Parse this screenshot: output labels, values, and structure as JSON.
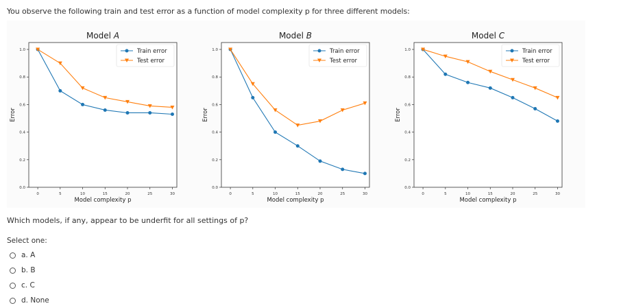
{
  "intro_text": "You observe the following train and test error as a function of model complexity p for three different models:",
  "question_text": "Which models, if any, appear to be underfit for all settings of p?",
  "select_label": "Select one:",
  "options": [
    {
      "label": "a. A"
    },
    {
      "label": "b. B"
    },
    {
      "label": "c. C"
    },
    {
      "label": "d. None"
    }
  ],
  "colors": {
    "train": "#1f77b4",
    "test": "#ff7f0e"
  },
  "chart_data": [
    {
      "type": "line",
      "title_prefix": "Model ",
      "title_var": "A",
      "xlabel": "Model complexity p",
      "ylabel": "Error",
      "xticks": [
        "0",
        "5",
        "10",
        "15",
        "20",
        "25",
        "30"
      ],
      "yticks": [
        "0.0",
        "0.2",
        "0.4",
        "0.6",
        "0.8",
        "1.0"
      ],
      "xlim": [
        -2,
        31
      ],
      "ylim": [
        0,
        1.05
      ],
      "legend": [
        "Train error",
        "Test error"
      ],
      "x": [
        0,
        5,
        10,
        15,
        20,
        25,
        30
      ],
      "series": [
        {
          "name": "Train error",
          "values": [
            1.0,
            0.7,
            0.6,
            0.56,
            0.54,
            0.54,
            0.53
          ]
        },
        {
          "name": "Test error",
          "values": [
            1.0,
            0.9,
            0.72,
            0.65,
            0.62,
            0.59,
            0.58
          ]
        }
      ]
    },
    {
      "type": "line",
      "title_prefix": "Model ",
      "title_var": "B",
      "xlabel": "Model complexity p",
      "ylabel": "Error",
      "xticks": [
        "0",
        "5",
        "10",
        "15",
        "20",
        "25",
        "30"
      ],
      "yticks": [
        "0.0",
        "0.2",
        "0.4",
        "0.6",
        "0.8",
        "1.0"
      ],
      "xlim": [
        -2,
        31
      ],
      "ylim": [
        0,
        1.05
      ],
      "legend": [
        "Train error",
        "Test error"
      ],
      "x": [
        0,
        5,
        10,
        15,
        20,
        25,
        30
      ],
      "series": [
        {
          "name": "Train error",
          "values": [
            1.0,
            0.65,
            0.4,
            0.3,
            0.19,
            0.13,
            0.1
          ]
        },
        {
          "name": "Test error",
          "values": [
            1.0,
            0.75,
            0.56,
            0.45,
            0.48,
            0.56,
            0.61
          ]
        }
      ]
    },
    {
      "type": "line",
      "title_prefix": "Model ",
      "title_var": "C",
      "xlabel": "Model complexity p",
      "ylabel": "Error",
      "xticks": [
        "0",
        "5",
        "10",
        "15",
        "20",
        "25",
        "30"
      ],
      "yticks": [
        "0.0",
        "0.2",
        "0.4",
        "0.6",
        "0.8",
        "1.0"
      ],
      "xlim": [
        -2,
        31
      ],
      "ylim": [
        0,
        1.05
      ],
      "legend": [
        "Train error",
        "Test error"
      ],
      "x": [
        0,
        5,
        10,
        15,
        20,
        25,
        30
      ],
      "series": [
        {
          "name": "Train error",
          "values": [
            1.0,
            0.82,
            0.76,
            0.72,
            0.65,
            0.57,
            0.48
          ]
        },
        {
          "name": "Test error",
          "values": [
            1.0,
            0.95,
            0.91,
            0.84,
            0.78,
            0.72,
            0.65
          ]
        }
      ]
    }
  ]
}
